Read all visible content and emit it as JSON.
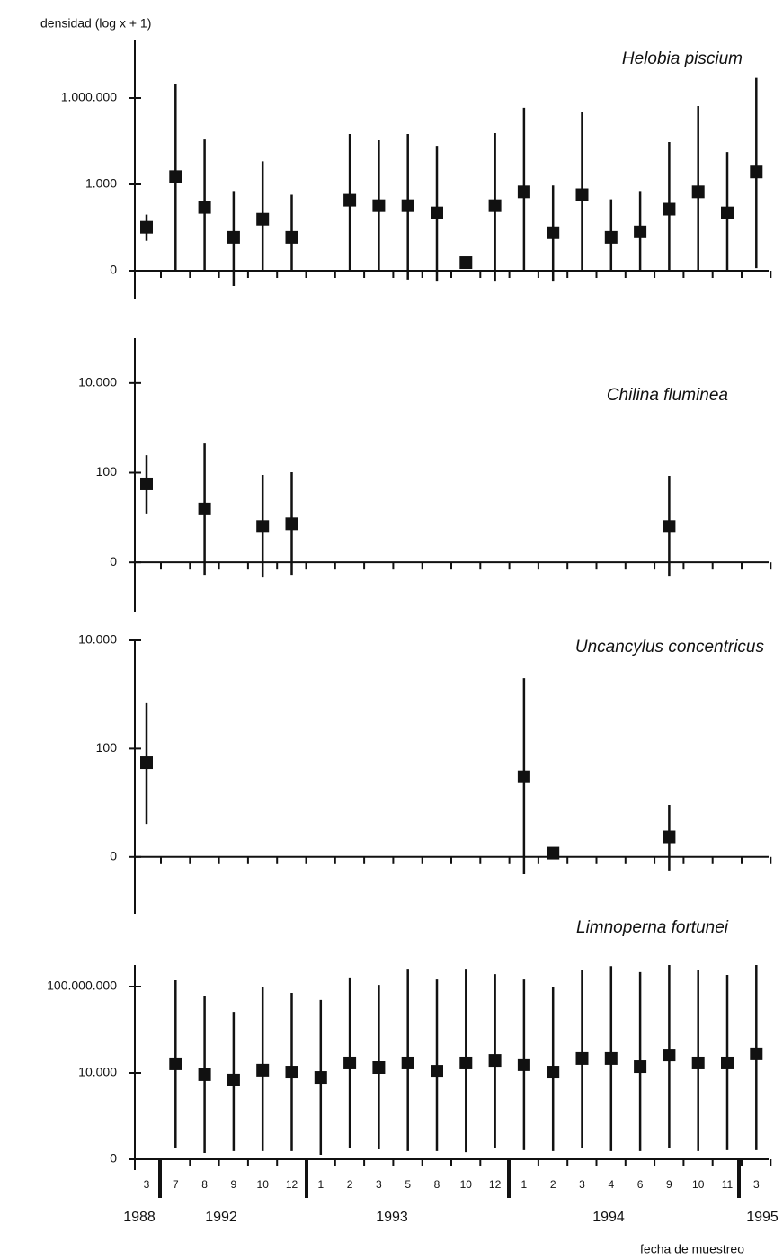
{
  "chart_data": [
    {
      "type": "errorbar",
      "title": "Helobia piscium",
      "y_label": "densidad (log x + 1)",
      "color": "#111",
      "ylim": [
        -1,
        8
      ],
      "yticks": [
        0,
        {
          "value": 3,
          "label": "1.000"
        },
        {
          "value": 6,
          "label": "1.000.000"
        }
      ],
      "values": [
        1.51,
        3.27,
        2.2,
        1.16,
        1.79,
        1.16,
        null,
        2.45,
        2.26,
        2.26,
        2.01,
        0.28,
        2.26,
        2.74,
        1.32,
        2.64,
        1.16,
        1.35,
        2.14,
        2.74,
        2.01,
        3.43
      ],
      "low": [
        1.04,
        0,
        0,
        -0.53,
        0,
        0,
        null,
        0,
        0,
        -0.31,
        -0.38,
        null,
        -0.38,
        0,
        -0.38,
        0,
        0,
        0,
        0,
        0,
        0,
        0.09
      ],
      "high": [
        1.95,
        6.5,
        4.56,
        2.77,
        3.8,
        2.64,
        null,
        4.75,
        4.53,
        4.75,
        4.34,
        null,
        4.78,
        5.66,
        2.96,
        5.53,
        2.48,
        2.77,
        4.47,
        5.72,
        4.12,
        6.7
      ]
    },
    {
      "type": "errorbar",
      "title": "Chilina fluminea",
      "color": "#111",
      "ylim": [
        -1.1,
        5
      ],
      "yticks": [
        0,
        {
          "value": 2,
          "label": "100"
        },
        {
          "value": 4,
          "label": "10.000"
        }
      ],
      "values": [
        1.75,
        null,
        1.19,
        null,
        0.8,
        0.86,
        null,
        null,
        null,
        null,
        null,
        null,
        null,
        null,
        null,
        null,
        null,
        null,
        0.8,
        null,
        null,
        null
      ],
      "low": [
        1.09,
        null,
        -0.28,
        null,
        -0.34,
        -0.28,
        null,
        null,
        null,
        null,
        null,
        null,
        null,
        null,
        null,
        null,
        null,
        null,
        -0.32,
        null,
        null,
        null
      ],
      "high": [
        2.39,
        null,
        2.65,
        null,
        1.95,
        2.01,
        null,
        null,
        null,
        null,
        null,
        null,
        null,
        null,
        null,
        null,
        null,
        null,
        1.93,
        null,
        null,
        null
      ]
    },
    {
      "type": "errorbar",
      "title": "Uncancylus concentricus",
      "color": "#111",
      "ylim": [
        -1.05,
        4
      ],
      "yticks": [
        0,
        {
          "value": 2,
          "label": "100"
        },
        {
          "value": 4,
          "label": "10.000"
        }
      ],
      "values": [
        1.74,
        null,
        null,
        null,
        null,
        null,
        null,
        null,
        null,
        null,
        null,
        null,
        null,
        1.48,
        0.07,
        null,
        null,
        null,
        0.37,
        null,
        null,
        null
      ],
      "low": [
        0.61,
        null,
        null,
        null,
        null,
        null,
        null,
        null,
        null,
        null,
        null,
        null,
        null,
        -0.32,
        null,
        null,
        null,
        null,
        -0.25,
        null,
        null,
        null
      ],
      "high": [
        2.84,
        null,
        null,
        null,
        null,
        null,
        null,
        null,
        null,
        null,
        null,
        null,
        null,
        3.3,
        null,
        null,
        null,
        null,
        0.96,
        null,
        null,
        null
      ]
    },
    {
      "type": "errorbar",
      "title": "Limnoperna fortunei",
      "color": "#111",
      "x_label": "fecha de muestreo",
      "ylim": [
        -0.5,
        9
      ],
      "yticks": [
        0,
        {
          "value": 4,
          "label": "10.000"
        },
        {
          "value": 8,
          "label": "100.000.000"
        }
      ],
      "categories": [
        "3",
        "7",
        "8",
        "9",
        "10",
        "12",
        "1",
        "2",
        "3",
        "5",
        "8",
        "10",
        "12",
        "1",
        "2",
        "3",
        "4",
        "6",
        "9",
        "10",
        "11",
        "3"
      ],
      "years": [
        "1988",
        "1992",
        "1993",
        "1994",
        "1995"
      ],
      "values": [
        null,
        4.42,
        3.92,
        3.67,
        4.13,
        4.04,
        3.79,
        4.46,
        4.25,
        4.46,
        4.08,
        4.46,
        4.58,
        4.38,
        4.04,
        4.67,
        4.67,
        4.29,
        4.83,
        4.46,
        4.46,
        4.88
      ],
      "low": [
        null,
        0.54,
        0.29,
        0.38,
        0.38,
        0.38,
        0.21,
        0.5,
        0.46,
        0.38,
        0.38,
        0.33,
        0.54,
        0.42,
        0.38,
        0.54,
        0.38,
        0.38,
        0.5,
        0.38,
        0.42,
        0.42
      ],
      "high": [
        null,
        8.29,
        7.54,
        6.83,
        8,
        7.71,
        7.38,
        8.42,
        8.08,
        8.83,
        8.33,
        8.83,
        8.58,
        8.33,
        8,
        8.75,
        8.95,
        8.67,
        9,
        8.79,
        8.54,
        9
      ]
    }
  ]
}
